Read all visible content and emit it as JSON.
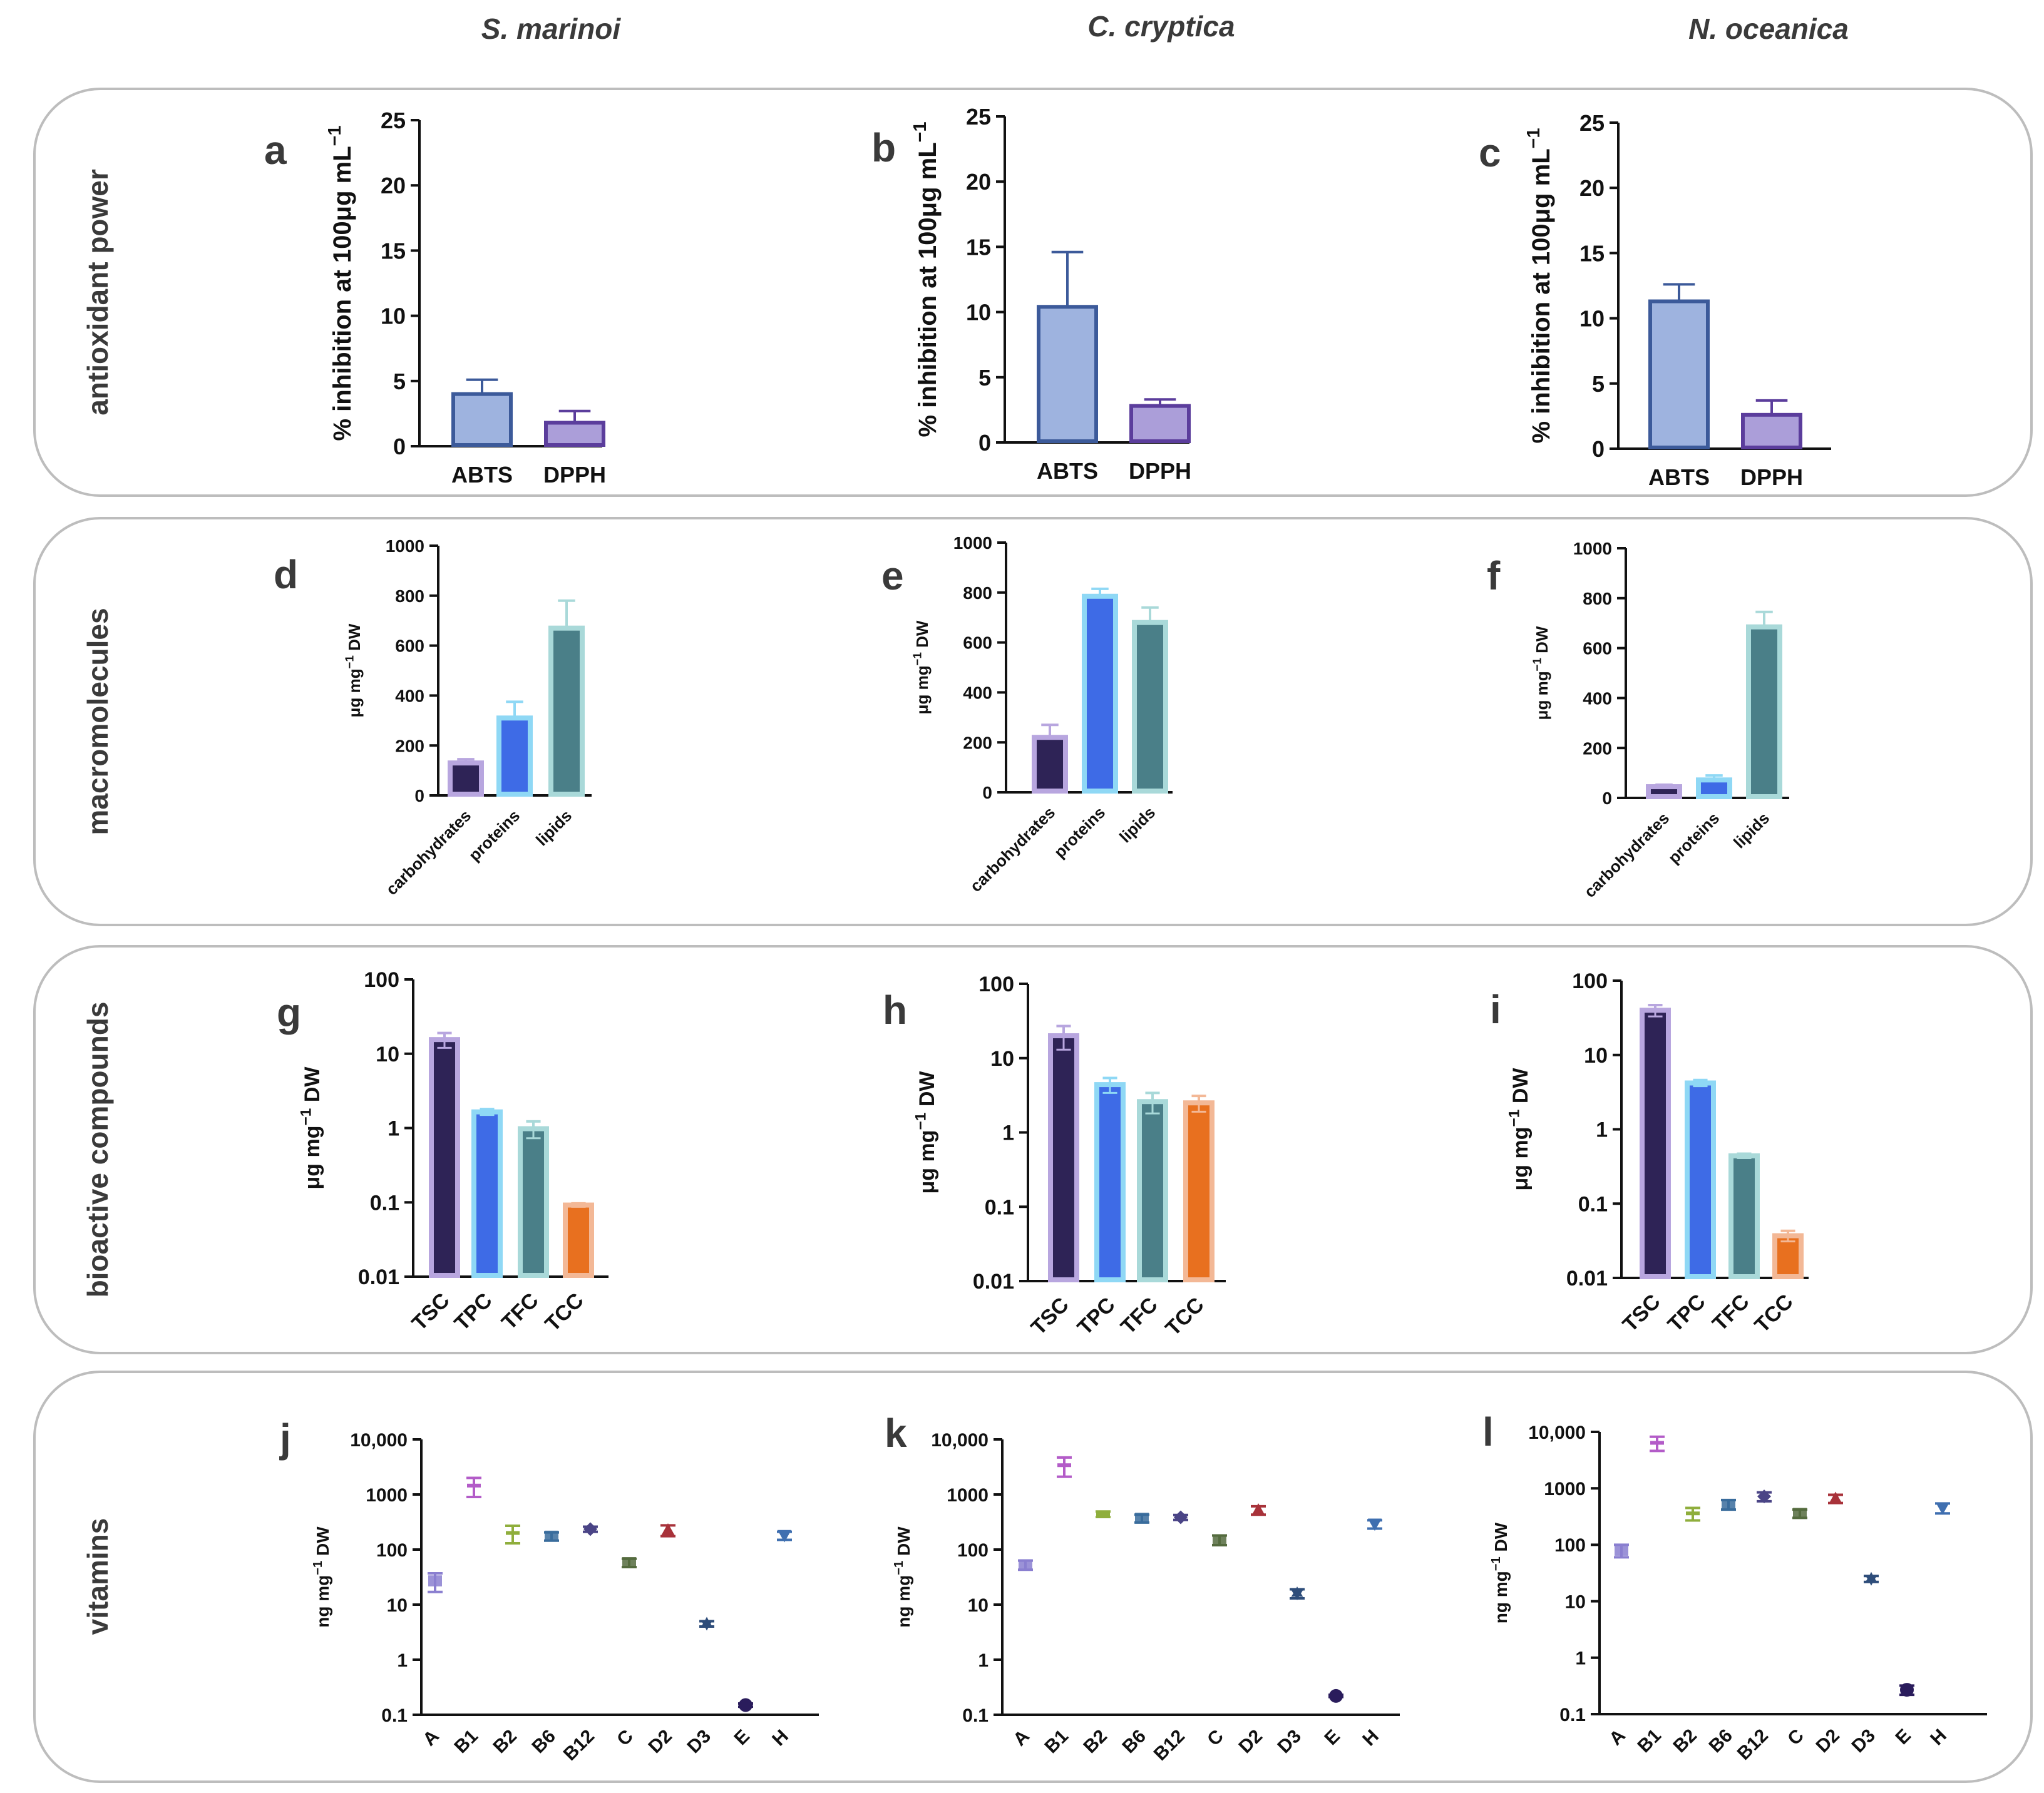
{
  "species": [
    "S. marinoi",
    "C. cryptica",
    "N. oceanica"
  ],
  "rows": [
    "antioxidant power",
    "macromolecules",
    "bioactive compounds",
    "vitamins"
  ],
  "colors": {
    "abts": "#9eb3df",
    "abts_edge": "#3c5a9a",
    "dpph": "#ab9ed9",
    "dpph_edge": "#5b3d9c",
    "carb": "#2e2356",
    "carb_edge": "#b8a6df",
    "prot": "#3e6be6",
    "prot_edge": "#8fd8f5",
    "lip": "#4a7f88",
    "lip_edge": "#a9d9d9",
    "tcc": "#e8701f",
    "tcc_edge": "#f3b896",
    "A": "#8a7fd0",
    "B1": "#b35cc8",
    "B2": "#8fae3c",
    "B6": "#3a6c9c",
    "B12": "#4a4486",
    "C": "#556b3e",
    "D2": "#a8323a",
    "D3": "#2e4d7a",
    "E": "#2a1c5c",
    "H": "#3f6fb0"
  },
  "chart_data": [
    {
      "id": "a",
      "type": "bar",
      "row": 0,
      "col": 0,
      "ylabel": "% inhibition at 100μg mL",
      "ylabel_sup": "−1",
      "ylim": [
        0,
        25
      ],
      "ticks": [
        "0",
        "5",
        "10",
        "15",
        "20",
        "25"
      ],
      "categories": [
        "ABTS",
        "DPPH"
      ],
      "values": [
        4.0,
        1.8
      ],
      "errors": [
        1.1,
        0.9
      ]
    },
    {
      "id": "b",
      "type": "bar",
      "row": 0,
      "col": 1,
      "ylabel": "% inhibition at 100μg mL",
      "ylabel_sup": "−1",
      "ylim": [
        0,
        25
      ],
      "ticks": [
        "0",
        "5",
        "10",
        "15",
        "20",
        "25"
      ],
      "categories": [
        "ABTS",
        "DPPH"
      ],
      "values": [
        10.4,
        2.8
      ],
      "errors": [
        4.2,
        0.5
      ]
    },
    {
      "id": "c",
      "type": "bar",
      "row": 0,
      "col": 2,
      "ylabel": "% inhibition at 100μg mL",
      "ylabel_sup": "−1",
      "ylim": [
        0,
        25
      ],
      "ticks": [
        "0",
        "5",
        "10",
        "15",
        "20",
        "25"
      ],
      "categories": [
        "ABTS",
        "DPPH"
      ],
      "values": [
        11.3,
        2.6
      ],
      "errors": [
        1.3,
        1.1
      ]
    },
    {
      "id": "d",
      "type": "bar",
      "row": 1,
      "col": 0,
      "ylabel": "μg mg",
      "ylabel_sup": "−1",
      "ylabel_tail": " DW",
      "ylim": [
        0,
        1000
      ],
      "ticks": [
        "0",
        "200",
        "400",
        "600",
        "800",
        "1000"
      ],
      "categories": [
        "carbohydrates",
        "proteins",
        "lipids"
      ],
      "values": [
        130,
        310,
        670
      ],
      "errors": [
        15,
        65,
        110
      ]
    },
    {
      "id": "e",
      "type": "bar",
      "row": 1,
      "col": 1,
      "ylabel": "μg mg",
      "ylabel_sup": "−1",
      "ylabel_tail": " DW",
      "ylim": [
        0,
        1000
      ],
      "ticks": [
        "0",
        "200",
        "400",
        "600",
        "800",
        "1000"
      ],
      "categories": [
        "carbohydrates",
        "proteins",
        "lipids"
      ],
      "values": [
        220,
        785,
        680
      ],
      "errors": [
        50,
        30,
        60
      ]
    },
    {
      "id": "f",
      "type": "bar",
      "row": 1,
      "col": 2,
      "ylabel": "μg mg",
      "ylabel_sup": "−1",
      "ylabel_tail": " DW",
      "ylim": [
        0,
        1000
      ],
      "ticks": [
        "0",
        "200",
        "400",
        "600",
        "800",
        "1000"
      ],
      "categories": [
        "carbohydrates",
        "proteins",
        "lipids"
      ],
      "values": [
        45,
        72,
        685
      ],
      "errors": [
        8,
        18,
        60
      ]
    },
    {
      "id": "g",
      "type": "bar",
      "row": 2,
      "col": 0,
      "scale": "log",
      "ylabel": "μg mg",
      "ylabel_sup": "−1",
      "ylabel_tail": " DW",
      "ylim": [
        0.01,
        100
      ],
      "ticks": [
        "0.01",
        "0.1",
        "1",
        "10",
        "100"
      ],
      "categories": [
        "TSC",
        "TPC",
        "TFC",
        "TCC"
      ],
      "values": [
        15.5,
        1.65,
        0.98,
        0.092
      ],
      "errors": [
        3.5,
        0.15,
        0.25,
        0.005
      ]
    },
    {
      "id": "h",
      "type": "bar",
      "row": 2,
      "col": 1,
      "scale": "log",
      "ylabel": "μg mg",
      "ylabel_sup": "−1",
      "ylabel_tail": " DW",
      "ylim": [
        0.01,
        100
      ],
      "ticks": [
        "0.01",
        "0.1",
        "1",
        "10",
        "100"
      ],
      "categories": [
        "TSC",
        "TPC",
        "TFC",
        "TCC"
      ],
      "values": [
        20,
        4.4,
        2.6,
        2.5
      ],
      "errors": [
        7,
        1.0,
        0.8,
        0.6
      ]
    },
    {
      "id": "i",
      "type": "bar",
      "row": 2,
      "col": 2,
      "scale": "log",
      "ylabel": "μg mg",
      "ylabel_sup": "−1",
      "ylabel_tail": " DW",
      "ylim": [
        0.01,
        100
      ],
      "ticks": [
        "0.01",
        "0.1",
        "1",
        "10",
        "100"
      ],
      "categories": [
        "TSC",
        "TPC",
        "TFC",
        "TCC"
      ],
      "values": [
        40,
        4.2,
        0.44,
        0.037
      ],
      "errors": [
        7,
        0.4,
        0.03,
        0.006
      ]
    },
    {
      "id": "j",
      "type": "scatter",
      "row": 3,
      "col": 0,
      "scale": "log",
      "ylabel": "ng mg",
      "ylabel_sup": "−1",
      "ylabel_tail": " DW",
      "ylim": [
        0.1,
        10000
      ],
      "ticks": [
        "0.1",
        "1",
        "10",
        "100",
        "1000",
        "10,000"
      ],
      "categories": [
        "A",
        "B1",
        "B2",
        "B6",
        "B12",
        "C",
        "D2",
        "D3",
        "E",
        "H"
      ],
      "values": [
        27,
        1450,
        200,
        175,
        235,
        58,
        225,
        4.5,
        0.15,
        180
      ],
      "errors": [
        10,
        550,
        70,
        30,
        25,
        10,
        50,
        0.5,
        0.01,
        30
      ]
    },
    {
      "id": "k",
      "type": "scatter",
      "row": 3,
      "col": 1,
      "scale": "log",
      "ylabel": "ng mg",
      "ylabel_sup": "−1",
      "ylabel_tail": " DW",
      "ylim": [
        0.1,
        10000
      ],
      "ticks": [
        "0.1",
        "1",
        "10",
        "100",
        "1000",
        "10,000"
      ],
      "categories": [
        "A",
        "B1",
        "B2",
        "B6",
        "B12",
        "C",
        "D2",
        "D3",
        "E",
        "H"
      ],
      "values": [
        53,
        3400,
        440,
        370,
        385,
        150,
        520,
        16,
        0.22,
        290
      ],
      "errors": [
        10,
        1300,
        50,
        60,
        40,
        30,
        90,
        3,
        0.01,
        50
      ]
    },
    {
      "id": "l",
      "type": "scatter",
      "row": 3,
      "col": 2,
      "scale": "log",
      "ylabel": "ng mg",
      "ylabel_sup": "−1",
      "ylabel_tail": " DW",
      "ylim": [
        0.1,
        10000
      ],
      "ticks": [
        "0.1",
        "1",
        "10",
        "100",
        "1000",
        "10,000"
      ],
      "categories": [
        "A",
        "B1",
        "B2",
        "B6",
        "B12",
        "C",
        "D2",
        "D3",
        "E",
        "H"
      ],
      "values": [
        80,
        6400,
        360,
        520,
        720,
        360,
        660,
        25,
        0.27,
        450
      ],
      "errors": [
        20,
        1800,
        90,
        100,
        130,
        60,
        110,
        3,
        0.05,
        90
      ]
    }
  ]
}
